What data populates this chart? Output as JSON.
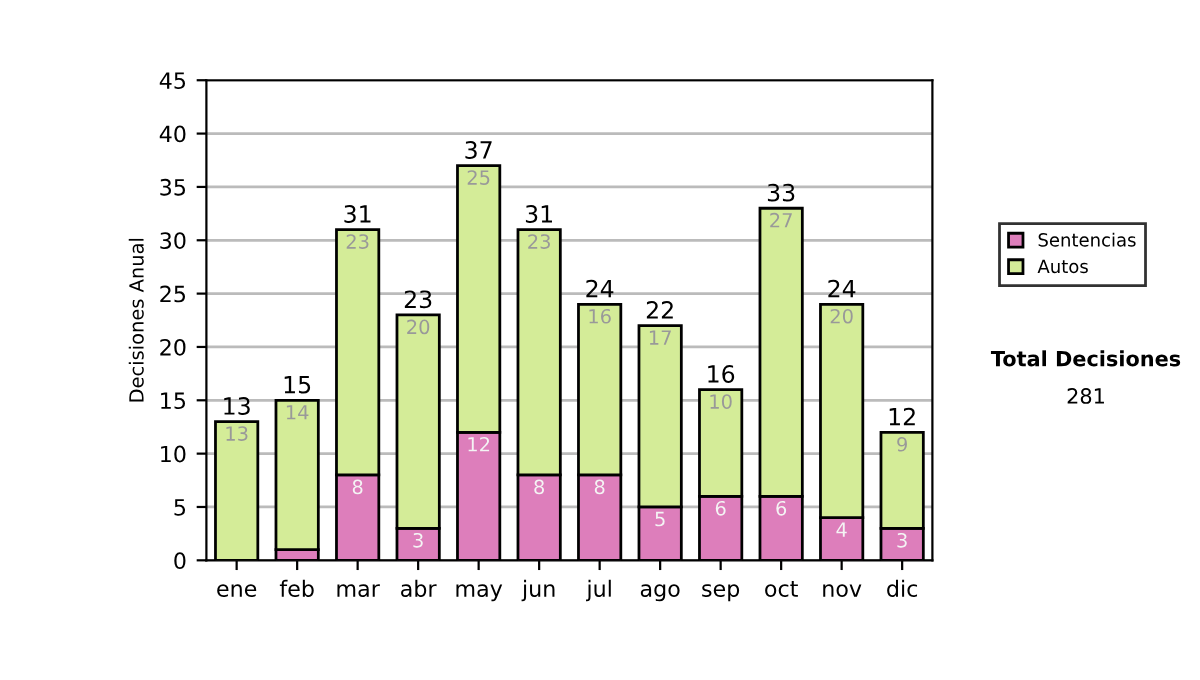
{
  "chart_data": {
    "type": "bar",
    "ylabel": "Decisiones Anual",
    "categories": [
      "ene",
      "feb",
      "mar",
      "abr",
      "may",
      "jun",
      "jul",
      "ago",
      "sep",
      "oct",
      "nov",
      "dic"
    ],
    "stacked": true,
    "series": [
      {
        "name": "Sentencias",
        "color": "#dd7ebb",
        "values": [
          0,
          1,
          8,
          3,
          12,
          8,
          8,
          5,
          6,
          6,
          4,
          3
        ],
        "value_labels": [
          null,
          null,
          "8",
          "3",
          "12",
          "8",
          "8",
          "5",
          "6",
          "6",
          "4",
          "3"
        ]
      },
      {
        "name": "Autos",
        "color": "#d4ec98",
        "values": [
          13,
          14,
          23,
          20,
          25,
          23,
          16,
          17,
          10,
          27,
          20,
          9
        ],
        "value_labels": [
          "13",
          "14",
          "23",
          "20",
          "25",
          "23",
          "16",
          "17",
          "10",
          "27",
          "20",
          "9"
        ]
      }
    ],
    "totals": [
      "13",
      "15",
      "31",
      "23",
      "37",
      "31",
      "24",
      "22",
      "16",
      "33",
      "24",
      "12"
    ],
    "ylim": [
      0,
      45
    ],
    "yticks": [
      0,
      5,
      10,
      15,
      20,
      25,
      30,
      35,
      40,
      45
    ],
    "grid": "y",
    "legend": "right",
    "annotations": [
      "Total Decisiones",
      "281"
    ]
  }
}
